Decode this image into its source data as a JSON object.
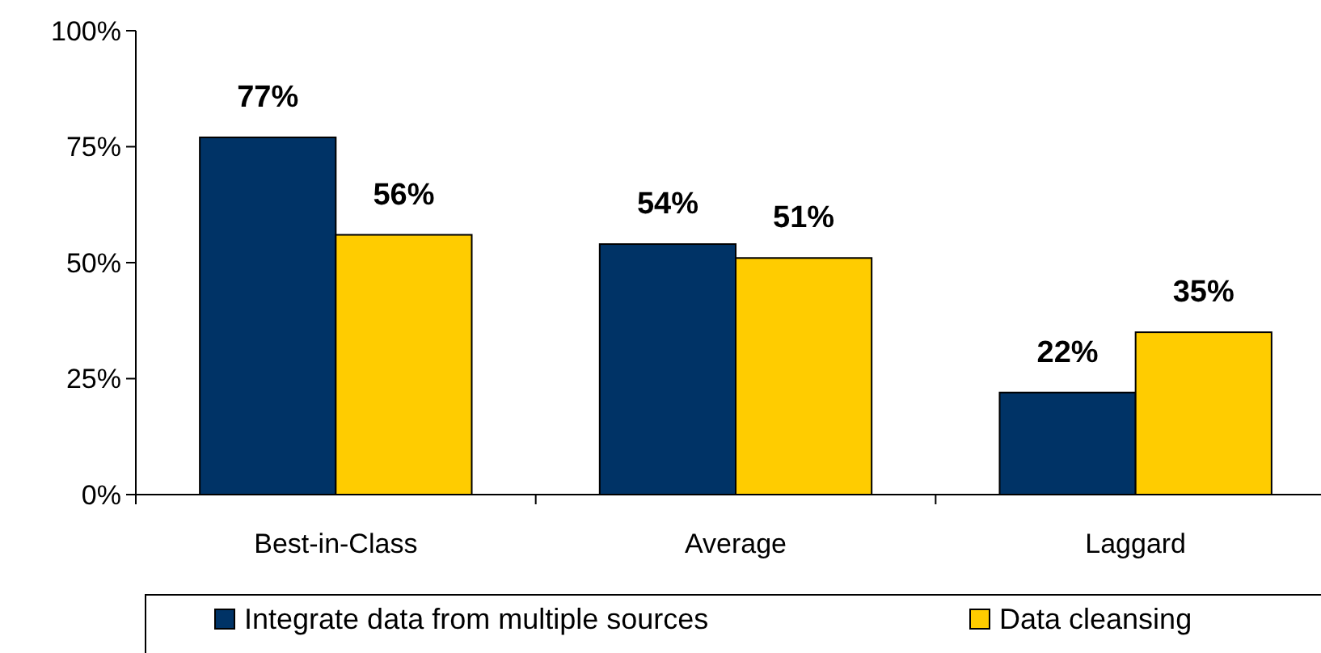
{
  "chart_data": {
    "type": "bar",
    "categories": [
      "Best-in-Class",
      "Average",
      "Laggard"
    ],
    "series": [
      {
        "name": "Integrate data from multiple sources",
        "color": "#003366",
        "values": [
          77,
          54,
          22
        ],
        "value_labels": [
          "77%",
          "54%",
          "22%"
        ]
      },
      {
        "name": "Data cleansing",
        "color": "#ffcc00",
        "values": [
          56,
          51,
          35
        ],
        "value_labels": [
          "56%",
          "51%",
          "35%"
        ]
      }
    ],
    "ylim": [
      0,
      100
    ],
    "yticks": [
      {
        "value": 0,
        "label": "0%"
      },
      {
        "value": 25,
        "label": "25%"
      },
      {
        "value": 50,
        "label": "50%"
      },
      {
        "value": 75,
        "label": "75%"
      },
      {
        "value": 100,
        "label": "100%"
      }
    ],
    "legend": "bottom"
  }
}
